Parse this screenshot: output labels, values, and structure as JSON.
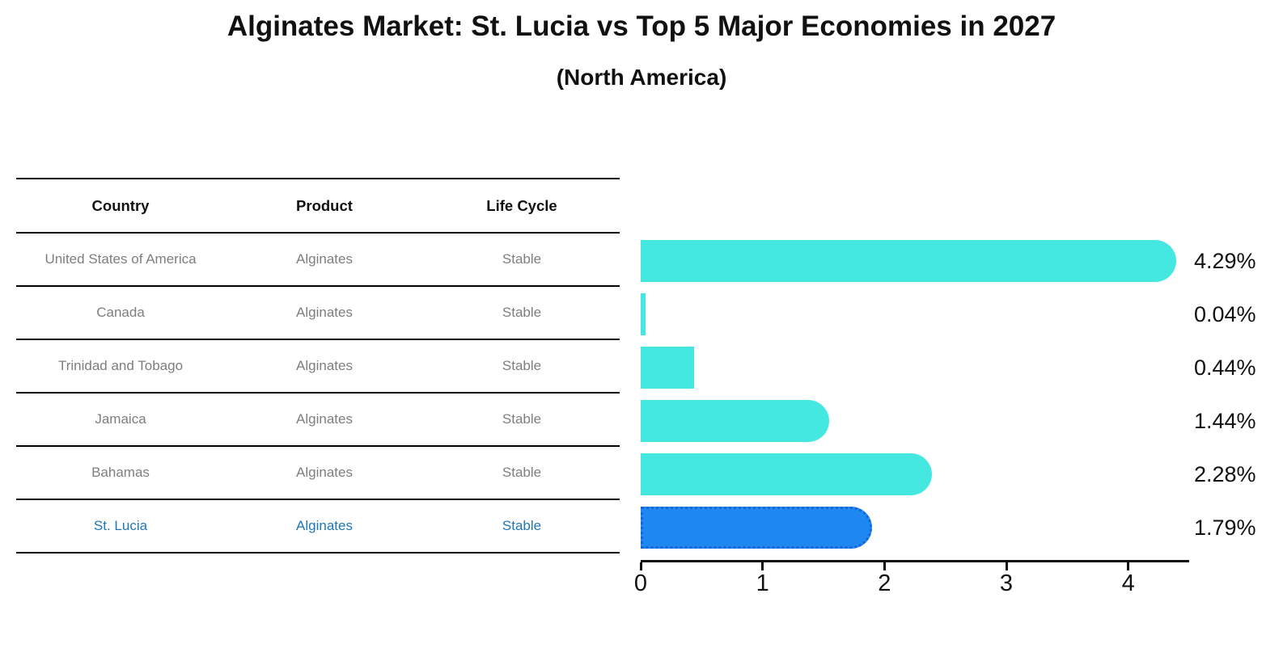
{
  "header": {
    "title": "Alginates Market: St. Lucia vs Top 5 Major Economies in 2027",
    "subtitle": "(North America)"
  },
  "table": {
    "columns": [
      "Country",
      "Product",
      "Life Cycle"
    ]
  },
  "chart_data": {
    "type": "bar",
    "orientation": "horizontal",
    "title": "Alginates Market: St. Lucia vs Top 5 Major Economies in 2027",
    "subtitle": "(North America)",
    "categories": [
      "United States of America",
      "Canada",
      "Trinidad and Tobago",
      "Jamaica",
      "Bahamas",
      "St. Lucia"
    ],
    "values": [
      4.29,
      0.04,
      0.44,
      1.44,
      2.28,
      1.79
    ],
    "value_labels": [
      "4.29%",
      "0.04%",
      "0.44%",
      "1.44%",
      "2.28%",
      "1.79%"
    ],
    "rows": [
      {
        "country": "United States of America",
        "product": "Alginates",
        "life_cycle": "Stable",
        "value": 4.29,
        "label": "4.29%",
        "highlight": false
      },
      {
        "country": "Canada",
        "product": "Alginates",
        "life_cycle": "Stable",
        "value": 0.04,
        "label": "0.04%",
        "highlight": false
      },
      {
        "country": "Trinidad and Tobago",
        "product": "Alginates",
        "life_cycle": "Stable",
        "value": 0.44,
        "label": "0.44%",
        "highlight": false
      },
      {
        "country": "Jamaica",
        "product": "Alginates",
        "life_cycle": "Stable",
        "value": 1.44,
        "label": "1.44%",
        "highlight": false
      },
      {
        "country": "Bahamas",
        "product": "Alginates",
        "life_cycle": "Stable",
        "value": 2.28,
        "label": "2.28%",
        "highlight": false
      },
      {
        "country": "St. Lucia",
        "product": "Alginates",
        "life_cycle": "Stable",
        "value": 1.79,
        "label": "1.79%",
        "highlight": true
      }
    ],
    "x_ticks": [
      0,
      1,
      2,
      3,
      4
    ],
    "xlim": [
      0,
      4.5
    ],
    "grid": false,
    "legend": false,
    "colors": {
      "bar_default": "#45E8E1",
      "bar_highlight": "#1E87F0",
      "bar_highlight_border": "#1565D8",
      "highlight_text": "#1F77B4",
      "row_text": "#7E7E7E",
      "axis": "#111111"
    }
  }
}
